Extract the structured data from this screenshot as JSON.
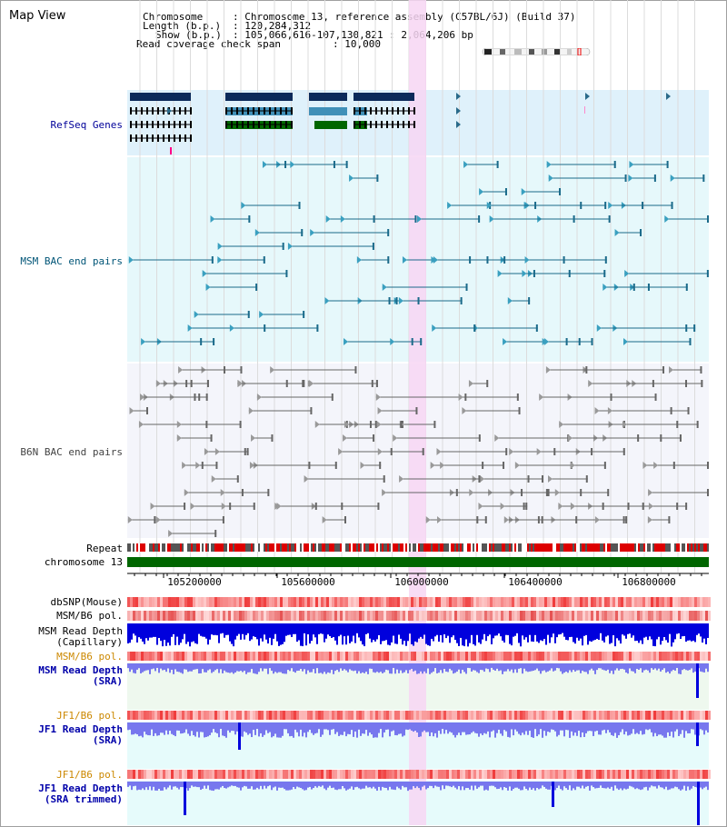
{
  "window": {
    "title": "Map View"
  },
  "header": {
    "chromosome_key": "Chromosome",
    "chromosome_val": ": Chromosome 13, reference assembly (C57BL/6J) (Build 37)",
    "length_key": "Length (b.p.)",
    "length_val": ": 120,284,312",
    "show_key": "Show (b.p.)",
    "show_val": ": 105,066,616-107,130,821 : 2,064,206 bp",
    "span_key": "Read coverage check span",
    "span_val": ": 10,000"
  },
  "tracks": {
    "refseq": "RefSeq Genes",
    "msm_bac": "MSM BAC end pairs",
    "b6n_bac": "B6N BAC end pairs",
    "repeat": "Repeat",
    "chromosome": "chromosome 13",
    "dbsnp": "dbSNP(Mouse)",
    "msm_b6_pol_1": "MSM/B6 pol.",
    "msm_depth_cap_1": "MSM Read Depth",
    "msm_depth_cap_2": "(Capillary)",
    "msm_b6_pol_2": "MSM/B6 pol.",
    "msm_depth_sra_1": "MSM Read Depth",
    "msm_depth_sra_2": "(SRA)",
    "jf1_b6_pol_1": "JF1/B6 pol.",
    "jf1_depth_sra_1": "JF1 Read Depth",
    "jf1_depth_sra_2": "(SRA)",
    "jf1_b6_pol_2": "JF1/B6 pol.",
    "jf1_depth_trim_1": "JF1 Read Depth",
    "jf1_depth_trim_2": "(SRA trimmed)"
  },
  "axis": {
    "ticks": [
      "105200000",
      "105600000",
      "106000000",
      "106400000",
      "106800000"
    ]
  },
  "colors": {
    "refseq_label": "#000099",
    "msm_label": "#005577",
    "b6n_label": "#444444",
    "orange_label": "#cc8800",
    "blue_label": "#0000aa",
    "gene_dark": "#0c2a5a",
    "gene_green": "#006600",
    "gene_teal": "#4090b8",
    "highlight": "#f7d6f3",
    "chrom_bar": "#006600",
    "depth_blue": "#0000dd",
    "depth_violet": "#7777ee"
  }
}
